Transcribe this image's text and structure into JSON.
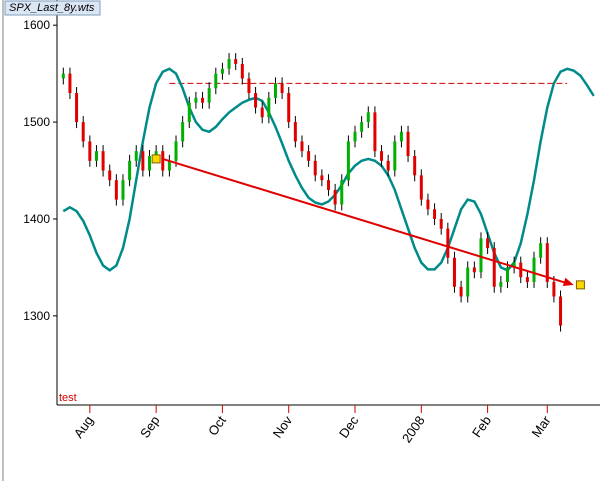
{
  "chart_data": {
    "type": "bar-chart",
    "title": "SPX_Last_8y.wts",
    "note": "test",
    "categories": [
      null,
      null,
      null,
      null,
      "Aug",
      null,
      null,
      null,
      null,
      null,
      null,
      null,
      null,
      null,
      "Sep",
      null,
      null,
      null,
      null,
      null,
      null,
      null,
      null,
      null,
      "Oct",
      null,
      null,
      null,
      null,
      null,
      null,
      null,
      null,
      null,
      "Nov",
      null,
      null,
      null,
      null,
      null,
      null,
      null,
      null,
      null,
      "Dec",
      null,
      null,
      null,
      null,
      null,
      null,
      null,
      null,
      null,
      "2008",
      null,
      null,
      null,
      null,
      null,
      null,
      null,
      null,
      null,
      "Feb",
      null,
      null,
      null,
      null,
      null,
      null,
      null,
      null,
      "Mar",
      null,
      null,
      null,
      null,
      null,
      null,
      null
    ],
    "ylim": [
      1208,
      1626
    ],
    "yticks": [
      1300,
      1400,
      1500,
      1600
    ],
    "bars": {
      "up_color": "#00b000",
      "down_color": "#e00000",
      "open": [
        1545,
        1550,
        1530,
        1500,
        1480,
        1460,
        1470,
        1450,
        1440,
        1420,
        1440,
        1460,
        1470,
        1450,
        1465,
        1470,
        1450,
        1460,
        1480,
        1500,
        1520,
        1525,
        1520,
        1535,
        1550,
        1555,
        1565,
        1560,
        1545,
        1530,
        1515,
        1505,
        1525,
        1540,
        1530,
        1500,
        1480,
        1470,
        1460,
        1445,
        1440,
        1430,
        1415,
        1440,
        1480,
        1490,
        1500,
        1510,
        1470,
        1460,
        1450,
        1480,
        1490,
        1465,
        1445,
        1420,
        1410,
        1400,
        1390,
        1360,
        1330,
        1320,
        1350,
        1345,
        1380,
        1370,
        1330,
        1335,
        1350,
        1355,
        1340,
        1335,
        1360,
        1375,
        1335,
        1320,
        null,
        null,
        null,
        null,
        null
      ],
      "close": [
        1550,
        1530,
        1500,
        1480,
        1460,
        1470,
        1450,
        1440,
        1420,
        1440,
        1460,
        1470,
        1450,
        1465,
        1470,
        1450,
        1460,
        1480,
        1500,
        1520,
        1525,
        1520,
        1535,
        1550,
        1555,
        1565,
        1560,
        1545,
        1530,
        1515,
        1505,
        1525,
        1540,
        1530,
        1500,
        1480,
        1470,
        1460,
        1445,
        1440,
        1430,
        1415,
        1440,
        1480,
        1490,
        1500,
        1510,
        1470,
        1460,
        1450,
        1480,
        1490,
        1465,
        1445,
        1420,
        1410,
        1400,
        1390,
        1360,
        1330,
        1320,
        1350,
        1345,
        1380,
        1370,
        1330,
        1335,
        1350,
        1355,
        1340,
        1335,
        1360,
        1375,
        1335,
        1320,
        1290,
        null,
        null,
        null,
        null,
        null
      ]
    },
    "cycle": {
      "color": "#008b8b",
      "values": [
        1408,
        1412,
        1408,
        1398,
        1383,
        1365,
        1352,
        1347,
        1352,
        1370,
        1400,
        1440,
        1480,
        1515,
        1540,
        1552,
        1555,
        1550,
        1535,
        1515,
        1500,
        1492,
        1490,
        1495,
        1503,
        1510,
        1515,
        1520,
        1523,
        1525,
        1522,
        1510,
        1495,
        1478,
        1460,
        1445,
        1432,
        1422,
        1417,
        1415,
        1418,
        1425,
        1435,
        1447,
        1455,
        1460,
        1462,
        1460,
        1455,
        1445,
        1430,
        1410,
        1390,
        1370,
        1355,
        1348,
        1348,
        1355,
        1370,
        1390,
        1410,
        1420,
        1418,
        1405,
        1385,
        1365,
        1350,
        1347,
        1355,
        1375,
        1405,
        1440,
        1480,
        1515,
        1540,
        1552,
        1555,
        1553,
        1548,
        1538,
        1527
      ]
    },
    "level_line": {
      "value": 1540,
      "color": "#d00000"
    },
    "trend_line": {
      "start": 1462,
      "end": 1332,
      "color": "#e00000"
    }
  }
}
